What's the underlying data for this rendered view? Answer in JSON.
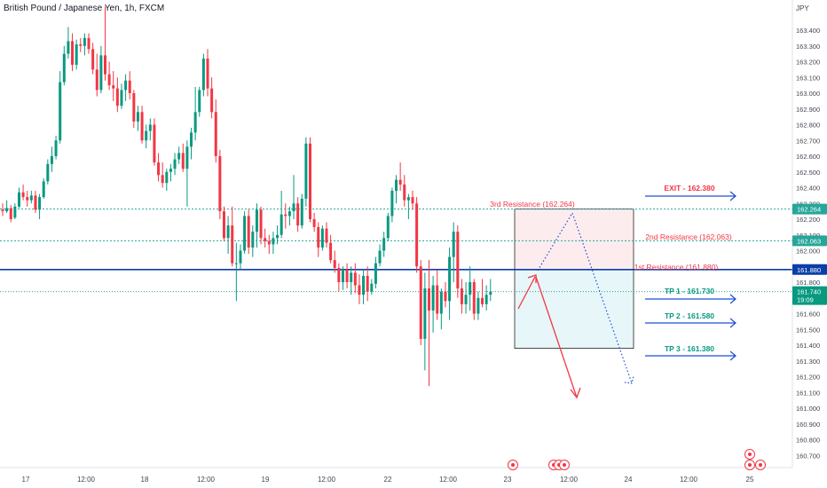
{
  "header": {
    "symbol_title": "British Pound / Japanese Yen, 1h, FXCM"
  },
  "axis": {
    "currency": "JPY",
    "y_ticks": [
      "163.400",
      "163.300",
      "163.200",
      "163.100",
      "163.000",
      "162.900",
      "162.800",
      "162.700",
      "162.600",
      "162.500",
      "162.400",
      "162.300",
      "162.200",
      "162.100",
      "162.000",
      "161.900",
      "161.800",
      "161.700",
      "161.600",
      "161.500",
      "161.400",
      "161.300",
      "161.200",
      "161.100",
      "161.000",
      "160.900",
      "160.800",
      "160.700"
    ],
    "x_ticks": [
      "17",
      "12:00",
      "18",
      "12:00",
      "19",
      "12:00",
      "22",
      "12:00",
      "23",
      "12:00",
      "24",
      "12:00",
      "25"
    ]
  },
  "price_badges": {
    "resistance3": "162.264",
    "resistance2": "162.063",
    "resistance1": "161.880",
    "current_price": "161.740",
    "countdown": "19:09"
  },
  "annotations": {
    "exit": "EXIT - 162.380",
    "res3": "3rd Resistance (162.264)",
    "res2": "2nd Resistance (162.063)",
    "res1": "1st Resistance (161.880)",
    "tp1": "TP 1 - 161.730",
    "tp2": "TP 2 - 161.580",
    "tp3": "TP 3 - 161.380"
  },
  "colors": {
    "up": "#089981",
    "down": "#f23645",
    "level_line": "#0b3ea8",
    "dotted_line": "#26a69a",
    "resistance_text": "#f23645",
    "tp_text": "#089981",
    "exit_text": "#f23645",
    "arrow": "#1e4dd8",
    "red_zone": "#fdecee",
    "green_zone": "#e7f6f8"
  },
  "chart_data": {
    "type": "candlestick",
    "title": "British Pound / Japanese Yen, 1h, FXCM",
    "ylabel": "JPY",
    "ylim": [
      160.66,
      163.52
    ],
    "horizontal_levels": [
      161.88,
      162.264,
      162.063,
      161.74
    ],
    "candles": [
      [
        162.26,
        162.3,
        162.22,
        162.25
      ],
      [
        162.25,
        162.32,
        162.24,
        162.27
      ],
      [
        162.27,
        162.29,
        162.18,
        162.2
      ],
      [
        162.21,
        162.3,
        162.2,
        162.28
      ],
      [
        162.28,
        162.4,
        162.27,
        162.37
      ],
      [
        162.37,
        162.42,
        162.32,
        162.34
      ],
      [
        162.34,
        162.38,
        162.28,
        162.32
      ],
      [
        162.32,
        162.38,
        162.3,
        162.35
      ],
      [
        162.35,
        162.38,
        162.24,
        162.26
      ],
      [
        162.26,
        162.36,
        162.2,
        162.34
      ],
      [
        162.34,
        162.46,
        162.33,
        162.44
      ],
      [
        162.44,
        162.58,
        162.42,
        162.55
      ],
      [
        162.55,
        162.66,
        162.5,
        162.6
      ],
      [
        162.6,
        162.73,
        162.58,
        162.7
      ],
      [
        162.7,
        163.14,
        162.68,
        163.07
      ],
      [
        163.07,
        163.3,
        163.05,
        163.25
      ],
      [
        163.25,
        163.42,
        163.22,
        163.33
      ],
      [
        163.33,
        163.38,
        163.14,
        163.18
      ],
      [
        163.18,
        163.34,
        163.15,
        163.31
      ],
      [
        163.31,
        163.35,
        163.26,
        163.3
      ],
      [
        163.3,
        163.38,
        163.24,
        163.35
      ],
      [
        163.35,
        163.38,
        163.25,
        163.28
      ],
      [
        163.28,
        163.32,
        163.12,
        163.15
      ],
      [
        163.15,
        163.25,
        162.98,
        163.02
      ],
      [
        163.02,
        163.3,
        163.0,
        163.24
      ],
      [
        163.24,
        163.55,
        163.08,
        163.12
      ],
      [
        163.12,
        163.2,
        163.02,
        163.05
      ],
      [
        163.05,
        163.14,
        162.95,
        163.03
      ],
      [
        163.03,
        163.1,
        162.88,
        162.92
      ],
      [
        162.92,
        163.06,
        162.9,
        163.02
      ],
      [
        163.02,
        163.12,
        162.95,
        163.08
      ],
      [
        163.08,
        163.14,
        162.96,
        163.0
      ],
      [
        163.0,
        163.02,
        162.78,
        162.82
      ],
      [
        162.82,
        162.92,
        162.76,
        162.88
      ],
      [
        162.88,
        162.92,
        162.68,
        162.7
      ],
      [
        162.7,
        162.8,
        162.65,
        162.76
      ],
      [
        162.76,
        162.84,
        162.7,
        162.8
      ],
      [
        162.8,
        162.84,
        162.54,
        162.56
      ],
      [
        162.56,
        162.62,
        162.44,
        162.48
      ],
      [
        162.48,
        162.56,
        162.4,
        162.43
      ],
      [
        162.43,
        162.52,
        162.38,
        162.5
      ],
      [
        162.5,
        162.55,
        162.44,
        162.52
      ],
      [
        162.52,
        162.62,
        162.48,
        162.58
      ],
      [
        162.58,
        162.66,
        162.55,
        162.62
      ],
      [
        162.62,
        162.68,
        162.5,
        162.52
      ],
      [
        162.52,
        162.7,
        162.28,
        162.66
      ],
      [
        162.66,
        162.78,
        162.58,
        162.75
      ],
      [
        162.75,
        163.04,
        162.7,
        162.88
      ],
      [
        162.88,
        163.04,
        162.85,
        163.02
      ],
      [
        163.02,
        163.25,
        162.98,
        163.22
      ],
      [
        163.22,
        163.28,
        162.98,
        163.03
      ],
      [
        163.03,
        163.1,
        162.84,
        162.88
      ],
      [
        162.88,
        162.96,
        162.56,
        162.6
      ],
      [
        162.6,
        162.64,
        162.2,
        162.25
      ],
      [
        162.25,
        162.28,
        162.06,
        162.08
      ],
      [
        162.08,
        162.22,
        161.98,
        162.16
      ],
      [
        162.16,
        162.28,
        161.9,
        161.92
      ],
      [
        161.92,
        162.05,
        161.68,
        161.92
      ],
      [
        161.92,
        162.04,
        161.88,
        162.0
      ],
      [
        162.0,
        162.25,
        161.98,
        162.22
      ],
      [
        162.22,
        162.26,
        161.98,
        162.02
      ],
      [
        162.02,
        162.16,
        161.96,
        162.12
      ],
      [
        162.12,
        162.3,
        162.02,
        162.26
      ],
      [
        162.26,
        162.28,
        162.04,
        162.08
      ],
      [
        162.08,
        162.14,
        162.02,
        162.06
      ],
      [
        162.06,
        162.1,
        161.98,
        162.04
      ],
      [
        162.04,
        162.12,
        161.98,
        162.08
      ],
      [
        162.08,
        162.16,
        162.04,
        162.1
      ],
      [
        162.1,
        162.38,
        162.08,
        162.23
      ],
      [
        162.23,
        162.3,
        162.14,
        162.22
      ],
      [
        162.22,
        162.28,
        162.16,
        162.25
      ],
      [
        162.25,
        162.48,
        162.2,
        162.3
      ],
      [
        162.3,
        162.34,
        162.12,
        162.16
      ],
      [
        162.16,
        162.36,
        162.14,
        162.33
      ],
      [
        162.33,
        162.72,
        162.28,
        162.68
      ],
      [
        162.68,
        162.72,
        162.18,
        162.2
      ],
      [
        162.2,
        162.24,
        162.12,
        162.15
      ],
      [
        162.15,
        162.18,
        161.96,
        162.02
      ],
      [
        162.02,
        162.16,
        162.0,
        162.14
      ],
      [
        162.14,
        162.18,
        162.02,
        162.05
      ],
      [
        162.05,
        162.1,
        161.92,
        161.94
      ],
      [
        161.94,
        162.0,
        161.86,
        161.89
      ],
      [
        161.89,
        161.92,
        161.74,
        161.8
      ],
      [
        161.8,
        161.9,
        161.75,
        161.88
      ],
      [
        161.88,
        161.92,
        161.76,
        161.8
      ],
      [
        161.8,
        161.9,
        161.72,
        161.86
      ],
      [
        161.86,
        161.92,
        161.73,
        161.78
      ],
      [
        161.78,
        161.85,
        161.66,
        161.72
      ],
      [
        161.72,
        161.88,
        161.66,
        161.84
      ],
      [
        161.84,
        161.9,
        161.68,
        161.74
      ],
      [
        161.74,
        161.82,
        161.72,
        161.79
      ],
      [
        161.79,
        161.96,
        161.76,
        161.92
      ],
      [
        161.92,
        162.04,
        161.9,
        162.0
      ],
      [
        162.0,
        162.12,
        161.96,
        162.08
      ],
      [
        162.08,
        162.24,
        162.06,
        162.22
      ],
      [
        162.22,
        162.4,
        162.18,
        162.38
      ],
      [
        162.38,
        162.48,
        162.3,
        162.45
      ],
      [
        162.45,
        162.56,
        162.38,
        162.42
      ],
      [
        162.42,
        162.48,
        162.28,
        162.32
      ],
      [
        162.32,
        162.36,
        162.2,
        162.34
      ],
      [
        162.34,
        162.38,
        162.26,
        162.3
      ],
      [
        162.3,
        162.34,
        161.86,
        161.9
      ],
      [
        161.9,
        161.94,
        161.4,
        161.44
      ],
      [
        161.44,
        161.86,
        161.24,
        161.76
      ],
      [
        161.76,
        161.94,
        161.14,
        161.62
      ],
      [
        161.62,
        161.84,
        161.48,
        161.78
      ],
      [
        161.78,
        161.88,
        161.56,
        161.6
      ],
      [
        161.6,
        161.76,
        161.5,
        161.74
      ],
      [
        161.74,
        161.8,
        161.64,
        161.68
      ],
      [
        161.68,
        162.02,
        161.56,
        161.96
      ],
      [
        161.96,
        162.18,
        161.8,
        162.12
      ],
      [
        162.12,
        162.16,
        161.7,
        161.76
      ],
      [
        161.76,
        161.82,
        161.6,
        161.66
      ],
      [
        161.66,
        161.8,
        161.6,
        161.72
      ],
      [
        161.72,
        161.9,
        161.62,
        161.8
      ],
      [
        161.8,
        161.82,
        161.56,
        161.6
      ],
      [
        161.6,
        161.74,
        161.56,
        161.7
      ],
      [
        161.7,
        161.82,
        161.64,
        161.66
      ],
      [
        161.66,
        161.78,
        161.62,
        161.72
      ],
      [
        161.72,
        161.82,
        161.68,
        161.74
      ]
    ]
  }
}
